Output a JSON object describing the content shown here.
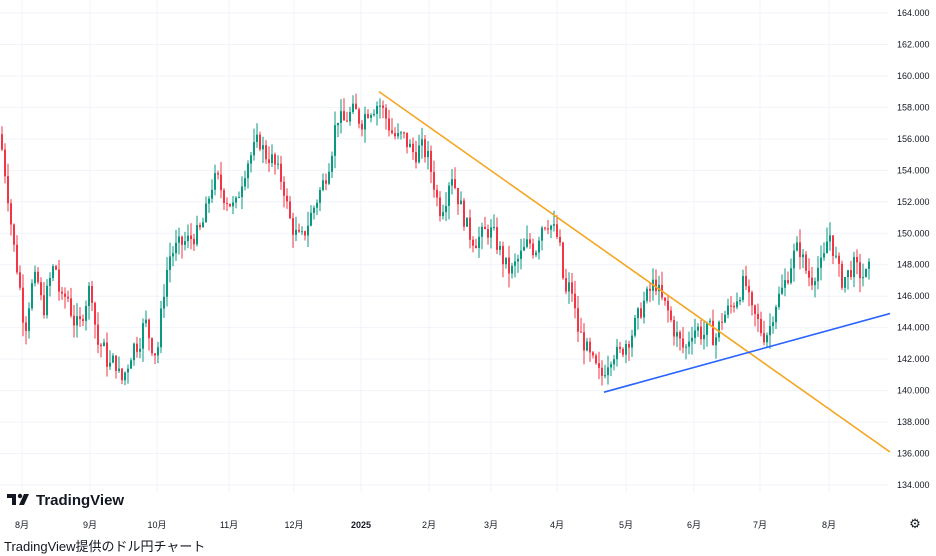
{
  "logo": {
    "text": "TradingView"
  },
  "caption": "TradingView提供のドル円チャート",
  "settings_icon": "gear-icon",
  "colors": {
    "up": "#089981",
    "down": "#f23645",
    "trend_down": "#f5a623",
    "trend_up": "#2962ff",
    "grid": "#f0f3fa"
  },
  "chart_data": {
    "type": "candlestick",
    "title": "",
    "ylim": [
      133,
      165
    ],
    "y_ticks": [
      "164.000",
      "162.000",
      "160.000",
      "158.000",
      "156.000",
      "154.000",
      "152.000",
      "150.000",
      "148.000",
      "146.000",
      "144.000",
      "142.000",
      "140.000",
      "138.000",
      "136.000",
      "134.000"
    ],
    "x_ticks": [
      "8月",
      "9月",
      "10月",
      "11月",
      "12月",
      "2025",
      "2月",
      "3月",
      "4月",
      "5月",
      "6月",
      "7月",
      "8月"
    ],
    "closes": [
      [
        0,
        155.8
      ],
      [
        6,
        153.0
      ],
      [
        12,
        149.5
      ],
      [
        18,
        147.0
      ],
      [
        24,
        143.8
      ],
      [
        30,
        146.5
      ],
      [
        36,
        147.2
      ],
      [
        42,
        145.0
      ],
      [
        48,
        146.8
      ],
      [
        54,
        148.2
      ],
      [
        60,
        145.5
      ],
      [
        66,
        146.2
      ],
      [
        72,
        144.5
      ],
      [
        78,
        144.0
      ],
      [
        84,
        145.5
      ],
      [
        90,
        146.8
      ],
      [
        96,
        143.0
      ],
      [
        102,
        142.8
      ],
      [
        108,
        141.5
      ],
      [
        114,
        142.0
      ],
      [
        120,
        140.5
      ],
      [
        126,
        141.5
      ],
      [
        132,
        142.8
      ],
      [
        138,
        143.0
      ],
      [
        144,
        144.5
      ],
      [
        150,
        143.0
      ],
      [
        156,
        142.2
      ],
      [
        162,
        146.0
      ],
      [
        168,
        148.5
      ],
      [
        174,
        149.0
      ],
      [
        180,
        149.3
      ],
      [
        186,
        149.5
      ],
      [
        192,
        149.8
      ],
      [
        198,
        150.0
      ],
      [
        204,
        151.0
      ],
      [
        210,
        153.0
      ],
      [
        216,
        153.5
      ],
      [
        222,
        152.5
      ],
      [
        228,
        152.0
      ],
      [
        234,
        151.5
      ],
      [
        240,
        153.2
      ],
      [
        246,
        154.5
      ],
      [
        252,
        155.2
      ],
      [
        258,
        156.0
      ],
      [
        264,
        155.0
      ],
      [
        270,
        154.8
      ],
      [
        276,
        154.0
      ],
      [
        282,
        153.2
      ],
      [
        288,
        151.0
      ],
      [
        294,
        150.0
      ],
      [
        300,
        149.5
      ],
      [
        306,
        150.5
      ],
      [
        312,
        151.5
      ],
      [
        318,
        152.5
      ],
      [
        324,
        153.5
      ],
      [
        330,
        155.0
      ],
      [
        336,
        157.5
      ],
      [
        342,
        157.0
      ],
      [
        348,
        157.5
      ],
      [
        354,
        157.8
      ],
      [
        360,
        157.0
      ],
      [
        366,
        157.8
      ],
      [
        372,
        158.0
      ],
      [
        378,
        158.3
      ],
      [
        384,
        157.5
      ],
      [
        390,
        156.5
      ],
      [
        396,
        156.0
      ],
      [
        402,
        156.2
      ],
      [
        408,
        155.5
      ],
      [
        414,
        155.0
      ],
      [
        420,
        155.5
      ],
      [
        426,
        155.0
      ],
      [
        432,
        153.5
      ],
      [
        438,
        151.5
      ],
      [
        444,
        152.0
      ],
      [
        450,
        154.0
      ],
      [
        456,
        152.5
      ],
      [
        462,
        151.2
      ],
      [
        468,
        150.0
      ],
      [
        474,
        149.5
      ],
      [
        480,
        149.8
      ],
      [
        486,
        150.2
      ],
      [
        492,
        150.0
      ],
      [
        498,
        149.0
      ],
      [
        504,
        148.0
      ],
      [
        510,
        147.5
      ],
      [
        516,
        148.2
      ],
      [
        522,
        148.8
      ],
      [
        528,
        149.5
      ],
      [
        534,
        148.8
      ],
      [
        540,
        150.5
      ],
      [
        546,
        150.8
      ],
      [
        552,
        150.3
      ],
      [
        558,
        149.5
      ],
      [
        564,
        146.0
      ],
      [
        570,
        146.8
      ],
      [
        576,
        144.0
      ],
      [
        582,
        143.2
      ],
      [
        588,
        142.2
      ],
      [
        594,
        141.5
      ],
      [
        600,
        140.8
      ],
      [
        606,
        141.8
      ],
      [
        612,
        142.5
      ],
      [
        618,
        142.2
      ],
      [
        624,
        143.0
      ],
      [
        630,
        143.5
      ],
      [
        636,
        144.5
      ],
      [
        642,
        145.5
      ],
      [
        648,
        146.2
      ],
      [
        654,
        147.0
      ],
      [
        660,
        145.8
      ],
      [
        666,
        145.2
      ],
      [
        672,
        144.0
      ],
      [
        678,
        143.2
      ],
      [
        684,
        142.5
      ],
      [
        690,
        143.8
      ],
      [
        696,
        144.0
      ],
      [
        702,
        143.5
      ],
      [
        708,
        144.0
      ],
      [
        714,
        143.2
      ],
      [
        720,
        144.5
      ],
      [
        726,
        145.0
      ],
      [
        732,
        145.5
      ],
      [
        738,
        146.2
      ],
      [
        744,
        147.0
      ],
      [
        750,
        145.0
      ],
      [
        756,
        144.5
      ],
      [
        762,
        143.5
      ],
      [
        768,
        143.8
      ],
      [
        774,
        145.5
      ],
      [
        780,
        146.2
      ],
      [
        786,
        147.2
      ],
      [
        792,
        148.5
      ],
      [
        798,
        149.2
      ],
      [
        804,
        147.8
      ],
      [
        810,
        147.0
      ],
      [
        816,
        147.8
      ],
      [
        822,
        148.0
      ],
      [
        828,
        150.2
      ],
      [
        834,
        148.5
      ],
      [
        840,
        147.0
      ],
      [
        846,
        147.3
      ],
      [
        852,
        148.0
      ],
      [
        858,
        147.5
      ],
      [
        864,
        147.2
      ],
      [
        870,
        147.9
      ]
    ],
    "trendlines": [
      {
        "from": [
          "2025-01-10",
          159.0
        ],
        "to": [
          "2025-09-01",
          136.1
        ],
        "color": "#f5a623"
      },
      {
        "from": [
          "2025-04-22",
          139.9
        ],
        "to": [
          "2025-09-01",
          144.9
        ],
        "color": "#2962ff"
      }
    ]
  }
}
